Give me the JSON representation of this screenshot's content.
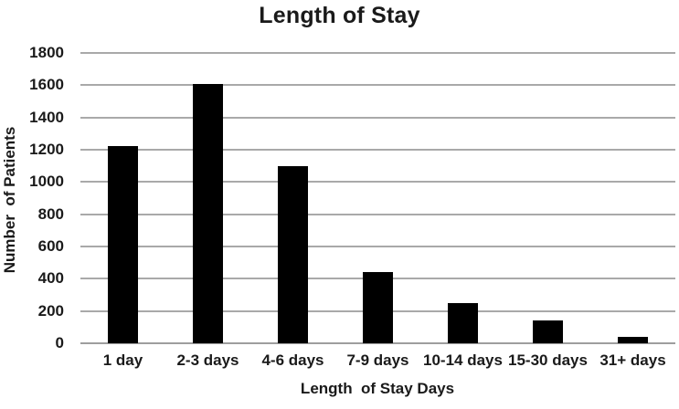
{
  "chart_data": {
    "type": "bar",
    "title": "Length of Stay",
    "xlabel": "Length  of Stay Days",
    "ylabel": "Number  of Patients",
    "categories": [
      "1 day",
      "2-3 days",
      "4-6 days",
      "7-9 days",
      "10-14 days",
      "15-30 days",
      "31+ days"
    ],
    "values": [
      1220,
      1610,
      1100,
      440,
      250,
      140,
      40
    ],
    "ylim": [
      0,
      1800
    ],
    "ytick_step": 200,
    "yticks": [
      0,
      200,
      400,
      600,
      800,
      1000,
      1200,
      1400,
      1600,
      1800
    ],
    "grid": "horizontal",
    "legend": "none",
    "bar_color": "#000000",
    "gridline_color": "#a9a9a9",
    "text_color": "#1a1a1a"
  }
}
